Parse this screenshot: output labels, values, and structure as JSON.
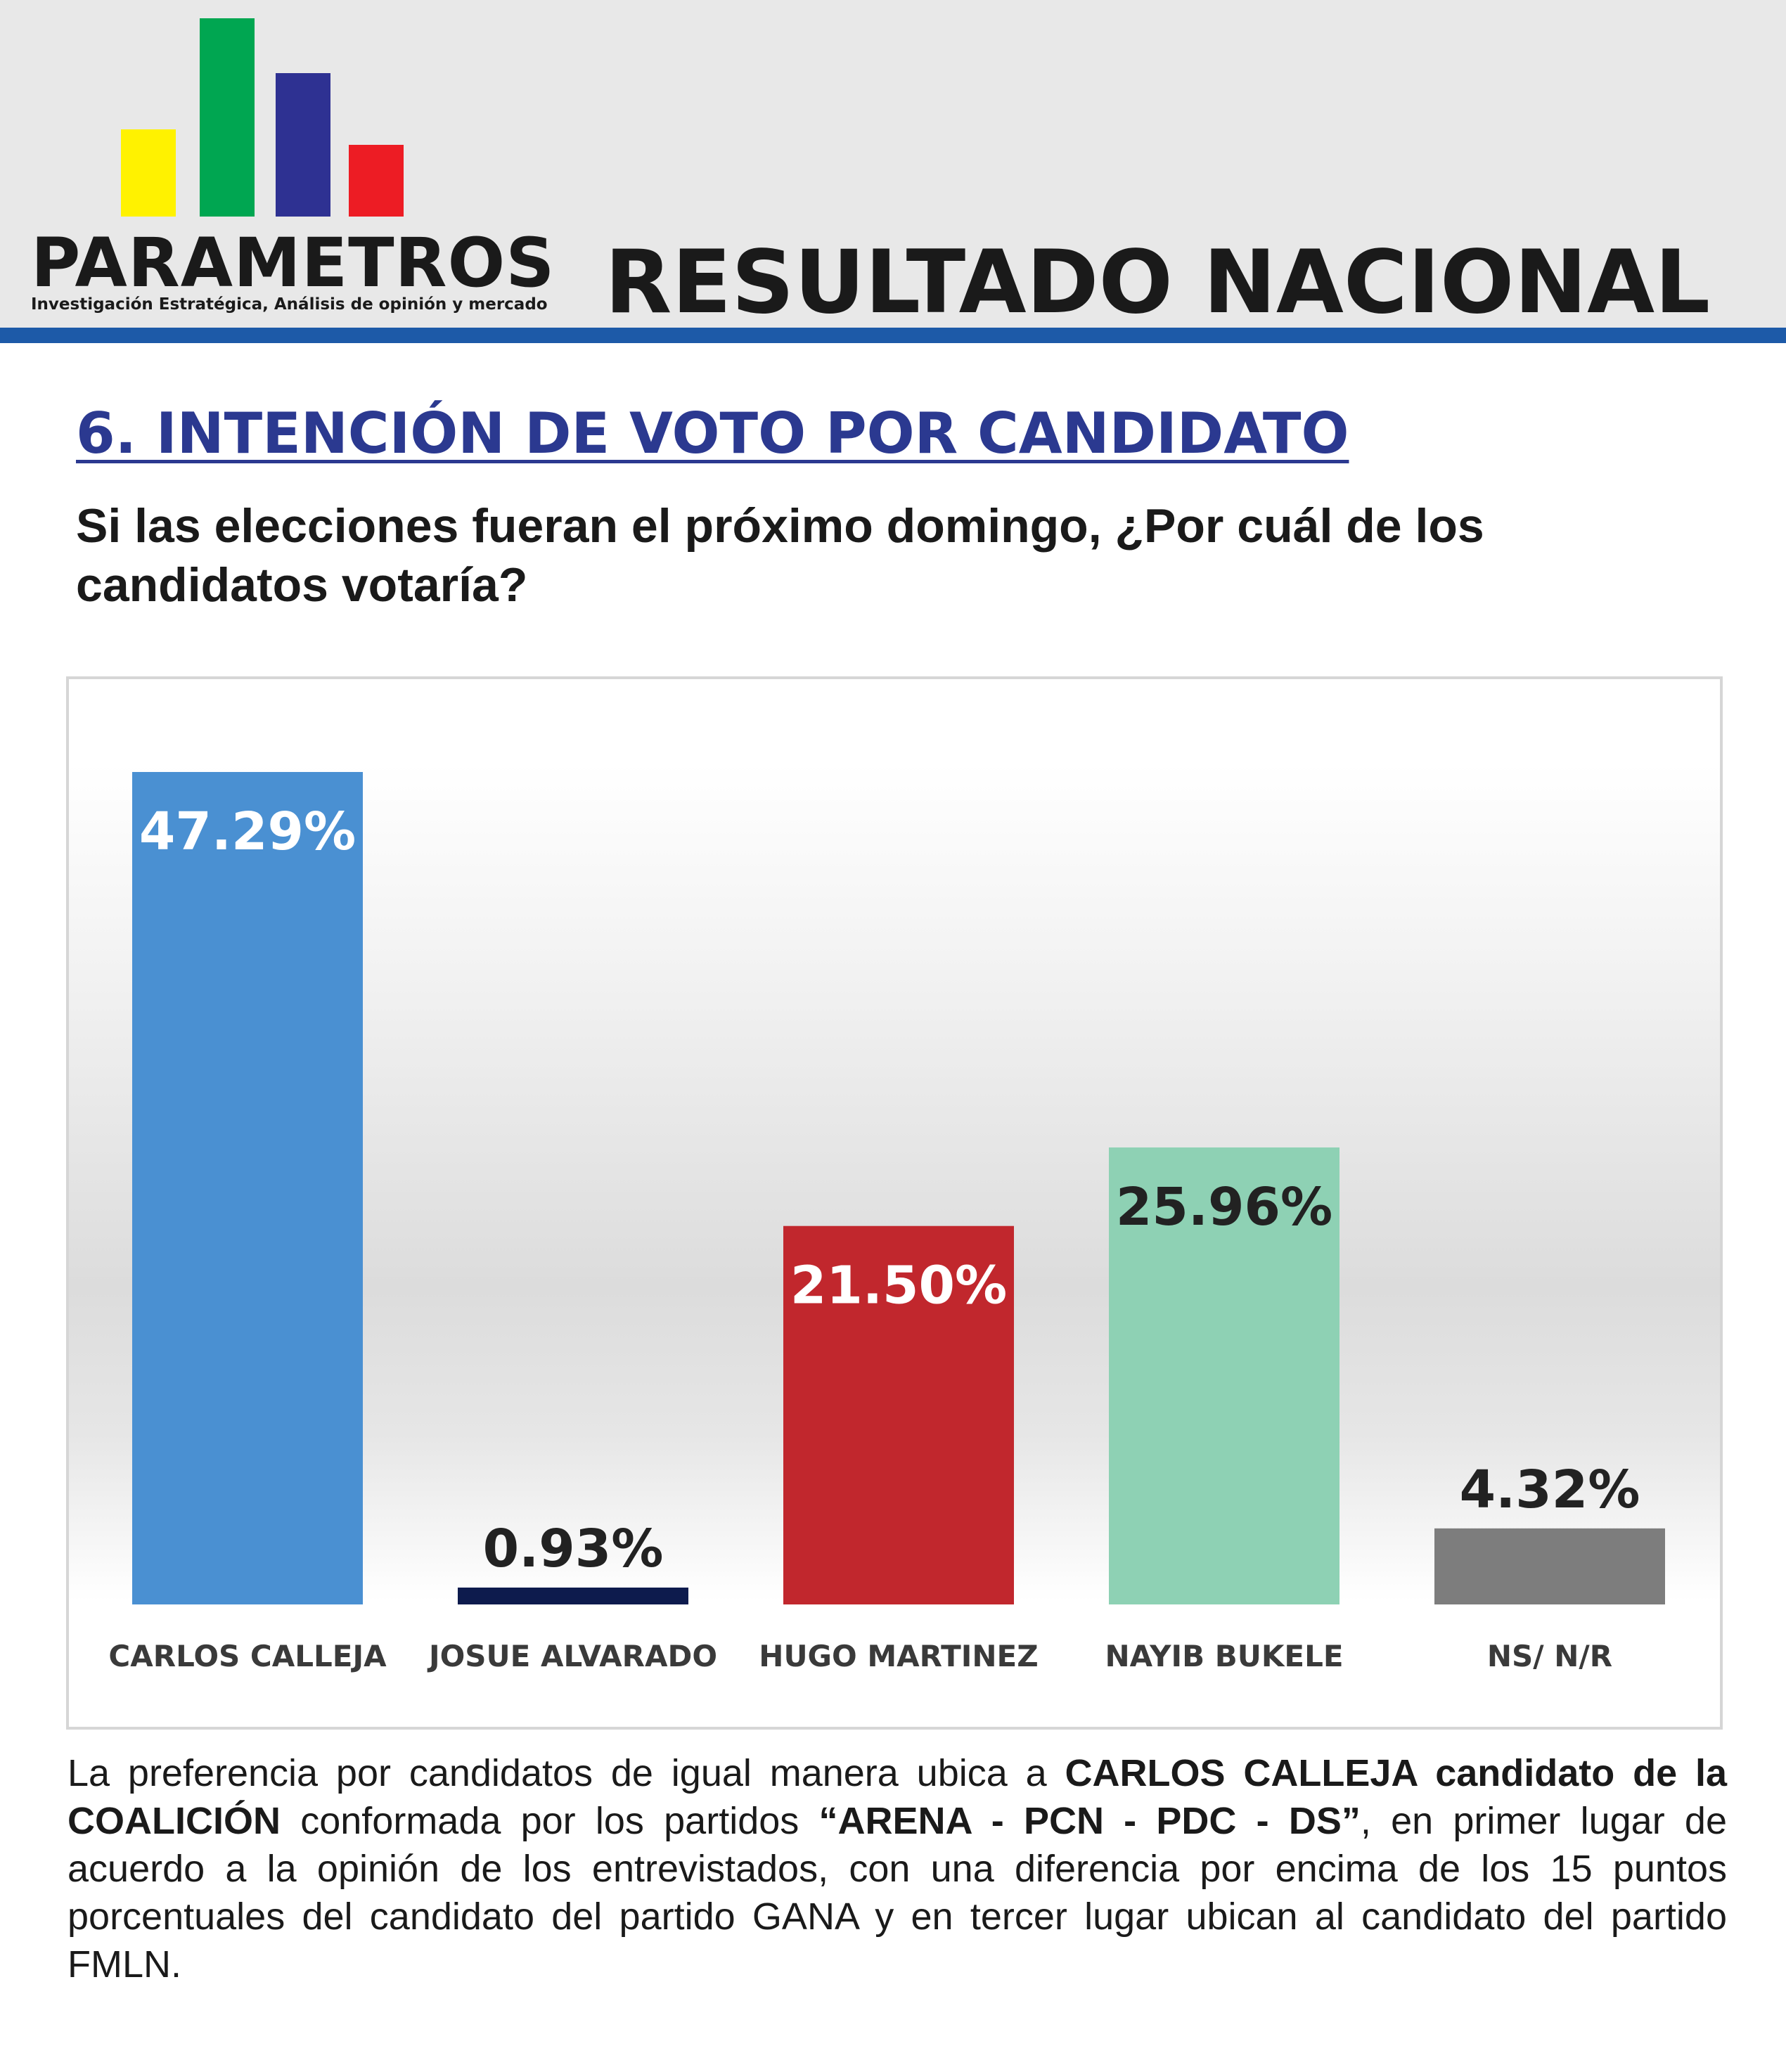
{
  "header": {
    "logo": {
      "name": "PARAMETROS",
      "tagline": "Investigación Estratégica, Análisis de opinión y mercado",
      "bar_colors": [
        "#fff200",
        "#00a651",
        "#2e3192",
        "#ed1c24"
      ]
    },
    "title": "RESULTADO NACIONAL",
    "rule_color": "#1d5aa8"
  },
  "section": {
    "title": "6. INTENCIÓN DE VOTO POR CANDIDATO",
    "question": "Si las elecciones fueran el próximo domingo, ¿Por cuál de los candidatos votaría?"
  },
  "chart_data": {
    "type": "bar",
    "title": "",
    "xlabel": "",
    "ylabel": "",
    "ylim": [
      0,
      50
    ],
    "grid": false,
    "categories": [
      "CARLOS CALLEJA",
      "JOSUE ALVARADO",
      "HUGO MARTINEZ",
      "NAYIB BUKELE",
      "NS/ N/R"
    ],
    "values": [
      47.29,
      0.93,
      21.5,
      25.96,
      4.32
    ],
    "value_labels": [
      "47.29%",
      "0.93%",
      "21.50%",
      "25.96%",
      "4.32%"
    ],
    "colors": [
      "#4a90d2",
      "#0d1b4d",
      "#c1272d",
      "#8ed1b4",
      "#7d7d7d"
    ]
  },
  "footer": {
    "part1": "La preferencia por candidatos de igual manera ubica a ",
    "bold1": "CARLOS CALLEJA candidato de la COALICIÓN",
    "part2": " conformada por los partidos ",
    "bold2": "“ARENA - PCN - PDC - DS”",
    "part3": ", en primer lugar de acuerdo a la opinión de los entrevistados, con una diferencia por encima de los 15 puntos porcentuales del candidato del partido GANA y en tercer lugar ubican al candidato del partido FMLN."
  }
}
